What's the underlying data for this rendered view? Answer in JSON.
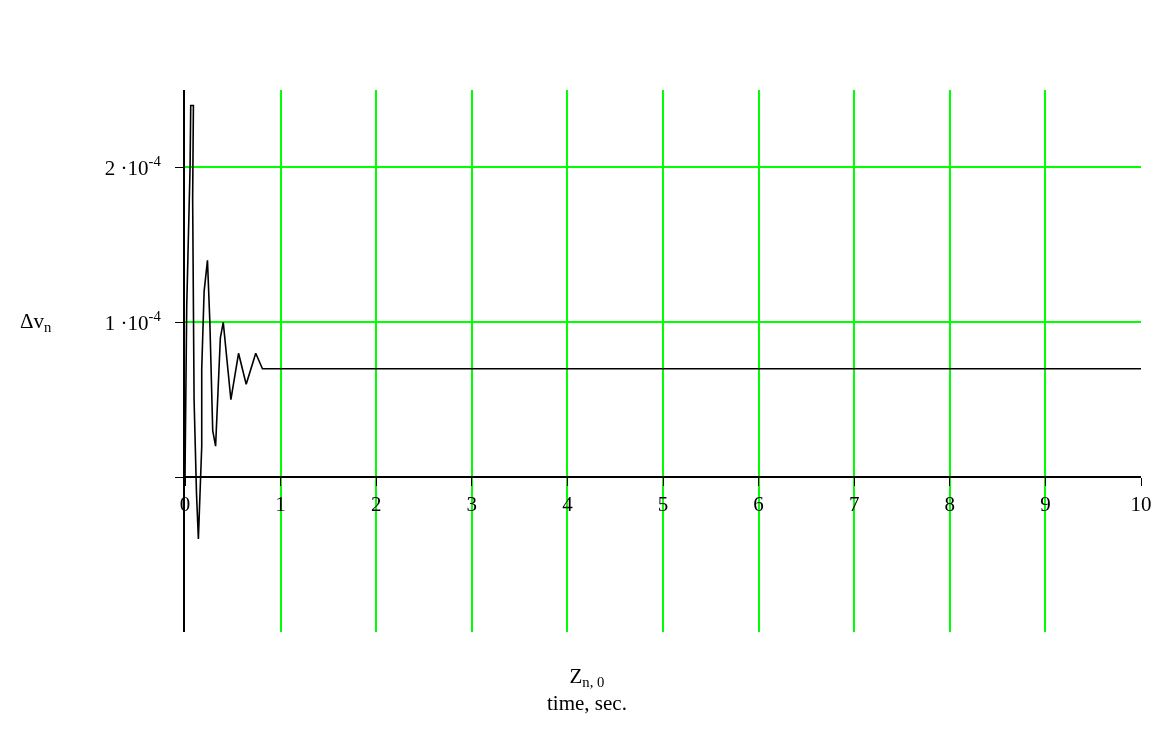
{
  "chart_data": {
    "type": "line",
    "xlabel": "Z$_{n, 0}$\ntime, sec.",
    "ylabel": "Δv$_{n}$",
    "x": [
      0,
      0.018,
      0.053,
      0.06,
      0.088,
      0.08,
      0.095,
      0.12,
      0.14,
      0.175,
      0.175,
      0.2,
      0.235,
      0.26,
      0.29,
      0.32,
      0.37,
      0.4,
      0.48,
      0.56,
      0.64,
      0.74,
      0.81,
      0.89,
      0.98,
      1.32,
      10
    ],
    "series": [
      {
        "color": "#000000",
        "values": [
          0,
          0.00011,
          0.0002,
          0.00024,
          0.00024,
          0.00018,
          5e-05,
          -1e-05,
          -4e-05,
          2e-05,
          7e-05,
          0.00012,
          0.00014,
          0.0001,
          3e-05,
          2e-05,
          9e-05,
          0.0001,
          5e-05,
          8e-05,
          6e-05,
          8e-05,
          7e-05,
          7e-05,
          7e-05,
          7e-05,
          7e-05
        ]
      }
    ],
    "xlim": [
      0,
      10
    ],
    "xticks": [
      0,
      1,
      2,
      3,
      4,
      5,
      6,
      7,
      8,
      9,
      10
    ],
    "ylim": [
      -0.0001,
      0.00025
    ],
    "yticks": [
      {
        "value": 0,
        "label": null
      },
      {
        "value": 0.0001,
        "label": "1 ·10$^{-4}$"
      },
      {
        "value": 0.0002,
        "label": "2 ·10$^{-4}$"
      }
    ],
    "grid": true,
    "marker": "none",
    "line_style": "solid"
  }
}
